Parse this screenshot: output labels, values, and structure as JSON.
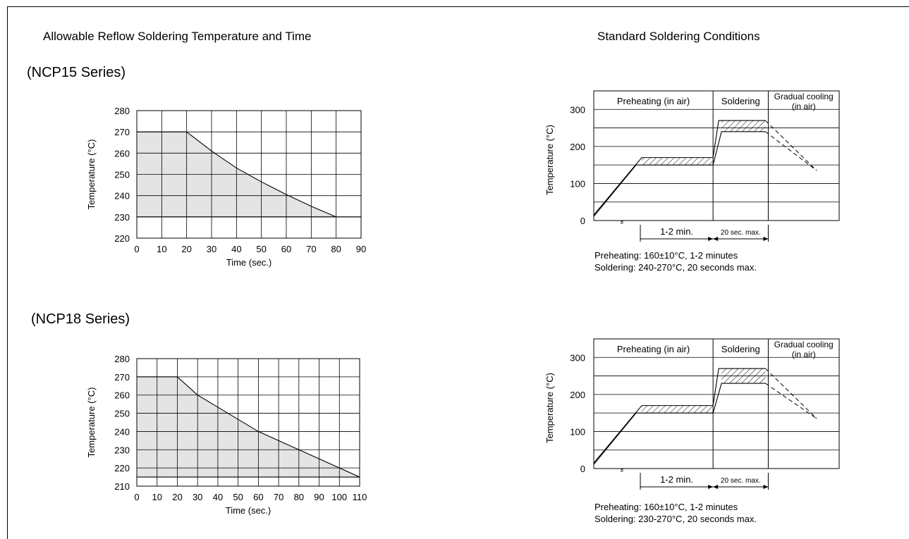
{
  "headings": {
    "left": "Allowable Reflow Soldering Temperature and Time",
    "right": "Standard Soldering Conditions"
  },
  "series_labels": [
    "(NCP15 Series)",
    "(NCP18 Series)"
  ],
  "chart_data": [
    {
      "type": "area",
      "title": "(NCP15 Series)",
      "xlabel": "Time (sec.)",
      "ylabel": "Temperature (°C)",
      "xlim": [
        0,
        90
      ],
      "ylim": [
        220,
        280
      ],
      "xticks": [
        0,
        10,
        20,
        30,
        40,
        50,
        60,
        70,
        80,
        90
      ],
      "yticks": [
        220,
        230,
        240,
        250,
        260,
        270,
        280
      ],
      "xtick_labels": [
        "0",
        "10",
        "20",
        "30",
        "40",
        "50",
        "60",
        "70",
        "80",
        "90"
      ],
      "ytick_labels": [
        "220",
        "230",
        "240",
        "250",
        "260",
        "270",
        "280"
      ],
      "grid": true,
      "fill_color": "#e4e4e4",
      "x": [
        0,
        20,
        30,
        40,
        50,
        60,
        70,
        80
      ],
      "y": [
        270,
        270,
        261,
        253,
        246.5,
        240.5,
        235,
        230
      ],
      "baseline": 230
    },
    {
      "type": "area",
      "title": "(NCP18 Series)",
      "xlabel": "Time (sec.)",
      "ylabel": "Temperature (°C)",
      "xlim": [
        0,
        110
      ],
      "ylim": [
        210,
        280
      ],
      "xticks": [
        0,
        10,
        20,
        30,
        40,
        50,
        60,
        70,
        80,
        90,
        100,
        110
      ],
      "yticks": [
        210,
        220,
        230,
        240,
        250,
        260,
        270,
        280
      ],
      "xtick_labels": [
        "0",
        "10",
        "20",
        "30",
        "40",
        "50",
        "60",
        "70",
        "80",
        "90",
        "100",
        "110"
      ],
      "ytick_labels": [
        "210",
        "220",
        "230",
        "240",
        "250",
        "260",
        "270",
        "280"
      ],
      "grid": true,
      "fill_color": "#e4e4e4",
      "x": [
        0,
        20,
        30,
        60,
        110
      ],
      "y": [
        270,
        270,
        260,
        240,
        215
      ],
      "baseline": 215
    },
    {
      "type": "line",
      "title": "Standard Soldering Conditions",
      "ylabel": "Temperature (°C)",
      "ylim": [
        0,
        350
      ],
      "yticks": [
        0,
        100,
        200,
        300
      ],
      "ytick_labels": [
        "0",
        "100",
        "200",
        "300"
      ],
      "phases": [
        "Preheating (in air)",
        "Soldering",
        "Gradual cooling\n(in air)"
      ],
      "phase_bounds_norm": [
        0,
        0.486,
        0.711,
        1
      ],
      "preheat_band": [
        150,
        170
      ],
      "solder_band": [
        240,
        270
      ],
      "break_mark": "⸗",
      "dims": [
        "1-2 min.",
        "20 sec. max."
      ],
      "notes": [
        "Preheating: 160±10°C, 1-2 minutes",
        "Soldering: 240-270°C, 20 seconds max."
      ]
    },
    {
      "type": "line",
      "title": "Standard Soldering Conditions",
      "ylabel": "Temperature (°C)",
      "ylim": [
        0,
        350
      ],
      "yticks": [
        0,
        100,
        200,
        300
      ],
      "ytick_labels": [
        "0",
        "100",
        "200",
        "300"
      ],
      "phases": [
        "Preheating (in air)",
        "Soldering",
        "Gradual cooling\n(in air)"
      ],
      "phase_bounds_norm": [
        0,
        0.486,
        0.711,
        1
      ],
      "preheat_band": [
        150,
        170
      ],
      "solder_band": [
        230,
        270
      ],
      "break_mark": "⸗",
      "dims": [
        "1-2 min.",
        "20 sec. max."
      ],
      "notes": [
        "Preheating: 160±10°C, 1-2 minutes",
        "Soldering: 230-270°C, 20 seconds max."
      ]
    }
  ]
}
